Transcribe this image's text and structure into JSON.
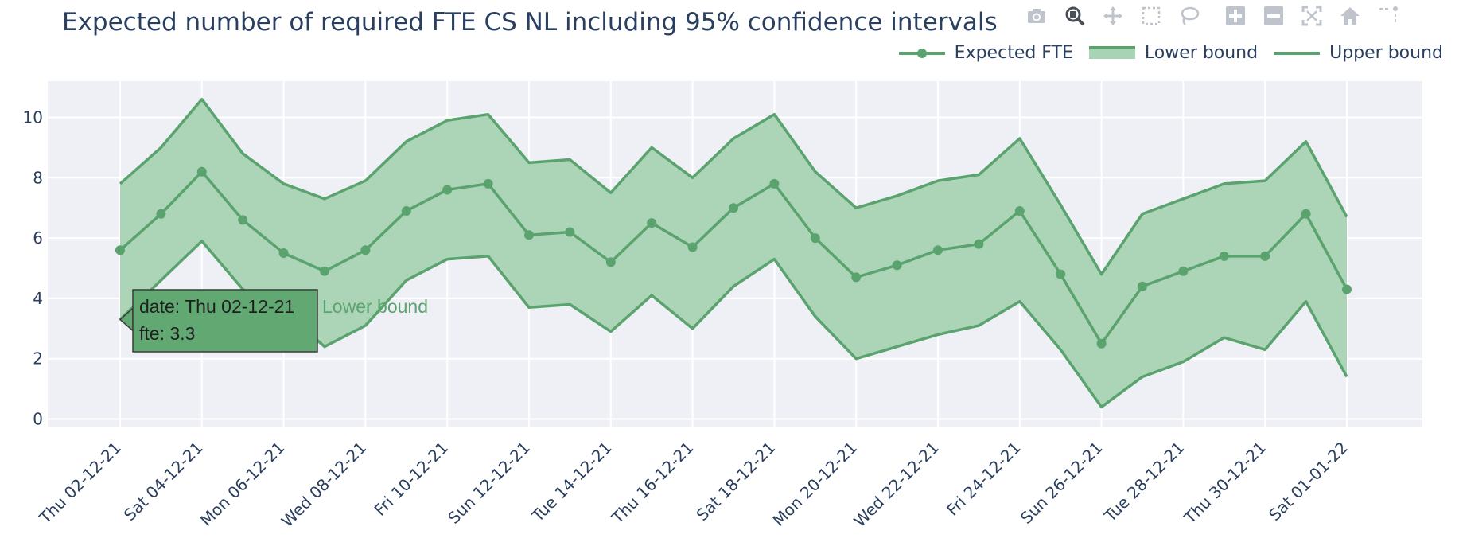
{
  "title": "Expected number of required FTE CS NL including 95% confidence intervals",
  "modebar": {
    "buttons": [
      "camera-icon",
      "zoom-icon",
      "pan-icon",
      "box-select-icon",
      "lasso-icon",
      "zoom-in-icon",
      "zoom-out-icon",
      "autoscale-icon",
      "home-icon",
      "spike-lines-icon"
    ]
  },
  "legend": {
    "items": [
      {
        "label": "Expected FTE",
        "style": "line-marker"
      },
      {
        "label": "Lower bound",
        "style": "fill"
      },
      {
        "label": "Upper bound",
        "style": "line"
      }
    ]
  },
  "colors": {
    "line": "#5aa36e",
    "fill": "#a8d3b4",
    "plot_bg": "#eef0f5",
    "grid": "#ffffff",
    "tooltip_bg": "#62a873",
    "tooltip_text": "#1f1f1f"
  },
  "tooltip": {
    "line1": "date: Thu 02-12-21",
    "line2": "fte: 3.3",
    "trace": "Lower bound"
  },
  "chart_data": {
    "type": "line",
    "title": "Expected number of required FTE CS NL including 95% confidence intervals",
    "xlabel": "",
    "ylabel": "",
    "x": [
      "02-12-21",
      "03-12-21",
      "04-12-21",
      "05-12-21",
      "06-12-21",
      "07-12-21",
      "08-12-21",
      "09-12-21",
      "10-12-21",
      "11-12-21",
      "12-12-21",
      "13-12-21",
      "14-12-21",
      "15-12-21",
      "16-12-21",
      "17-12-21",
      "18-12-21",
      "19-12-21",
      "20-12-21",
      "21-12-21",
      "22-12-21",
      "23-12-21",
      "24-12-21",
      "25-12-21",
      "26-12-21",
      "27-12-21",
      "28-12-21",
      "29-12-21",
      "30-12-21",
      "31-12-21",
      "01-01-22"
    ],
    "x_tick_labels": [
      "Thu 02-12-21",
      "Sat 04-12-21",
      "Mon 06-12-21",
      "Wed 08-12-21",
      "Fri 10-12-21",
      "Sun 12-12-21",
      "Tue 14-12-21",
      "Thu 16-12-21",
      "Sat 18-12-21",
      "Mon 20-12-21",
      "Wed 22-12-21",
      "Fri 24-12-21",
      "Sun 26-12-21",
      "Tue 28-12-21",
      "Thu 30-12-21",
      "Sat 01-01-22"
    ],
    "y_ticks": [
      0,
      2,
      4,
      6,
      8,
      10
    ],
    "ylim": [
      -0.25,
      11.2
    ],
    "grid": true,
    "legend_position": "top-right",
    "series": [
      {
        "name": "Expected FTE",
        "values": [
          5.6,
          6.8,
          8.2,
          6.6,
          5.5,
          4.9,
          5.6,
          6.9,
          7.6,
          7.8,
          6.1,
          6.2,
          5.2,
          6.5,
          5.7,
          7.0,
          7.8,
          6.0,
          4.7,
          5.1,
          5.6,
          5.8,
          6.9,
          4.8,
          2.5,
          4.4,
          4.9,
          5.4,
          5.4,
          6.8,
          4.3
        ]
      },
      {
        "name": "Lower bound",
        "values": [
          3.3,
          4.6,
          5.9,
          4.3,
          3.6,
          2.4,
          3.1,
          4.6,
          5.3,
          5.4,
          3.7,
          3.8,
          2.9,
          4.1,
          3.0,
          4.4,
          5.3,
          3.4,
          2.0,
          2.4,
          2.8,
          3.1,
          3.9,
          2.3,
          0.4,
          1.4,
          1.9,
          2.7,
          2.3,
          3.9,
          1.4
        ]
      },
      {
        "name": "Upper bound",
        "values": [
          7.8,
          9.0,
          10.6,
          8.8,
          7.8,
          7.3,
          7.9,
          9.2,
          9.9,
          10.1,
          8.5,
          8.6,
          7.5,
          9.0,
          8.0,
          9.3,
          10.1,
          8.2,
          7.0,
          7.4,
          7.9,
          8.1,
          9.3,
          7.1,
          4.8,
          6.8,
          7.3,
          7.8,
          7.9,
          9.2,
          6.7
        ]
      }
    ]
  }
}
